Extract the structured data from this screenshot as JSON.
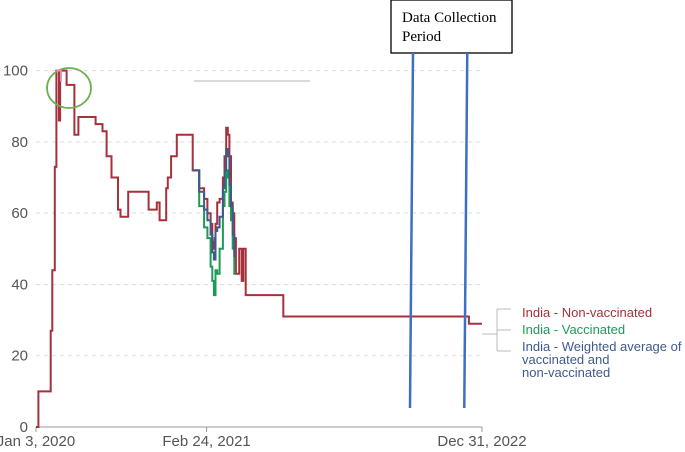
{
  "chart_data": {
    "type": "line",
    "title": "",
    "xlabel": "",
    "ylabel": "",
    "ylim": [
      0,
      110
    ],
    "xlim": [
      "2020-01-03",
      "2022-12-31"
    ],
    "yticks": [
      "0",
      "20",
      "40",
      "60",
      "80",
      "100"
    ],
    "xticks": [
      {
        "date": "2020-01-03",
        "label": "Jan 3, 2020"
      },
      {
        "date": "2021-02-24",
        "label": "Feb 24, 2021"
      },
      {
        "date": "2022-12-31",
        "label": "Dec 31, 2022"
      }
    ],
    "grid": true,
    "colors": {
      "non_vaccinated": "#a7303d",
      "vaccinated": "#1f9a55",
      "weighted": "#3e5a8a",
      "annotation_lines": "#3d6fc4",
      "highlight_circle": "#6ab04c",
      "highlight_mark": "#e58ab0"
    },
    "series": [
      {
        "name": "India - Non-vaccinated",
        "key": "non_vaccinated",
        "points": [
          [
            "2020-01-03",
            0
          ],
          [
            "2020-01-09",
            0
          ],
          [
            "2020-01-09",
            10
          ],
          [
            "2020-02-08",
            10
          ],
          [
            "2020-02-08",
            27
          ],
          [
            "2020-02-12",
            27
          ],
          [
            "2020-02-12",
            44
          ],
          [
            "2020-02-18",
            44
          ],
          [
            "2020-02-18",
            73
          ],
          [
            "2020-02-22",
            73
          ],
          [
            "2020-02-22",
            100
          ],
          [
            "2020-02-28",
            100
          ],
          [
            "2020-02-28",
            86
          ],
          [
            "2020-03-02",
            86
          ],
          [
            "2020-03-02",
            100
          ],
          [
            "2020-03-18",
            100
          ],
          [
            "2020-03-18",
            96
          ],
          [
            "2020-04-06",
            96
          ],
          [
            "2020-04-06",
            82
          ],
          [
            "2020-04-16",
            82
          ],
          [
            "2020-04-16",
            87
          ],
          [
            "2020-05-28",
            87
          ],
          [
            "2020-05-28",
            85
          ],
          [
            "2020-06-14",
            85
          ],
          [
            "2020-06-14",
            83
          ],
          [
            "2020-06-24",
            83
          ],
          [
            "2020-06-24",
            76
          ],
          [
            "2020-07-06",
            76
          ],
          [
            "2020-07-06",
            70
          ],
          [
            "2020-07-22",
            70
          ],
          [
            "2020-07-22",
            61
          ],
          [
            "2020-07-28",
            61
          ],
          [
            "2020-07-28",
            59
          ],
          [
            "2020-08-16",
            59
          ],
          [
            "2020-08-16",
            66
          ],
          [
            "2020-10-05",
            66
          ],
          [
            "2020-10-05",
            61
          ],
          [
            "2020-10-25",
            61
          ],
          [
            "2020-10-25",
            63
          ],
          [
            "2020-11-01",
            63
          ],
          [
            "2020-11-01",
            58
          ],
          [
            "2020-11-17",
            58
          ],
          [
            "2020-11-17",
            67
          ],
          [
            "2020-11-21",
            67
          ],
          [
            "2020-11-21",
            70
          ],
          [
            "2020-11-29",
            70
          ],
          [
            "2020-11-29",
            76
          ],
          [
            "2020-12-13",
            76
          ],
          [
            "2020-12-13",
            82
          ],
          [
            "2021-01-21",
            82
          ],
          [
            "2021-01-21",
            72
          ],
          [
            "2021-02-06",
            72
          ],
          [
            "2021-02-06",
            67
          ],
          [
            "2021-02-18",
            67
          ],
          [
            "2021-02-18",
            64
          ],
          [
            "2021-02-26",
            64
          ],
          [
            "2021-02-26",
            60
          ],
          [
            "2021-03-06",
            60
          ],
          [
            "2021-03-06",
            57
          ],
          [
            "2021-03-10",
            57
          ],
          [
            "2021-03-10",
            52
          ],
          [
            "2021-03-14",
            52
          ],
          [
            "2021-03-14",
            50
          ],
          [
            "2021-03-16",
            50
          ],
          [
            "2021-03-16",
            53
          ],
          [
            "2021-03-18",
            53
          ],
          [
            "2021-03-18",
            57
          ],
          [
            "2021-03-22",
            57
          ],
          [
            "2021-03-22",
            63
          ],
          [
            "2021-03-28",
            63
          ],
          [
            "2021-03-28",
            64
          ],
          [
            "2021-04-05",
            64
          ],
          [
            "2021-04-05",
            70
          ],
          [
            "2021-04-09",
            70
          ],
          [
            "2021-04-09",
            76
          ],
          [
            "2021-04-13",
            76
          ],
          [
            "2021-04-13",
            84
          ],
          [
            "2021-04-17",
            84
          ],
          [
            "2021-04-17",
            82
          ],
          [
            "2021-04-21",
            82
          ],
          [
            "2021-04-21",
            76
          ],
          [
            "2021-04-25",
            76
          ],
          [
            "2021-04-25",
            63
          ],
          [
            "2021-04-29",
            63
          ],
          [
            "2021-04-29",
            60
          ],
          [
            "2021-05-03",
            60
          ],
          [
            "2021-05-03",
            53
          ],
          [
            "2021-05-07",
            53
          ],
          [
            "2021-05-07",
            43
          ],
          [
            "2021-05-15",
            43
          ],
          [
            "2021-05-15",
            50
          ],
          [
            "2021-05-21",
            50
          ],
          [
            "2021-05-21",
            41
          ],
          [
            "2021-05-25",
            41
          ],
          [
            "2021-05-25",
            50
          ],
          [
            "2021-05-31",
            50
          ],
          [
            "2021-05-31",
            37
          ],
          [
            "2021-08-31",
            37
          ],
          [
            "2021-08-31",
            31
          ],
          [
            "2022-11-29",
            31
          ],
          [
            "2022-11-29",
            29
          ],
          [
            "2022-12-31",
            29
          ]
        ]
      },
      {
        "name": "India - Vaccinated",
        "key": "vaccinated",
        "points": [
          [
            "2021-01-21",
            72
          ],
          [
            "2021-02-06",
            72
          ],
          [
            "2021-02-06",
            62
          ],
          [
            "2021-02-18",
            62
          ],
          [
            "2021-02-18",
            56
          ],
          [
            "2021-02-26",
            56
          ],
          [
            "2021-02-26",
            53
          ],
          [
            "2021-03-06",
            53
          ],
          [
            "2021-03-06",
            45
          ],
          [
            "2021-03-10",
            45
          ],
          [
            "2021-03-10",
            41
          ],
          [
            "2021-03-14",
            41
          ],
          [
            "2021-03-14",
            37
          ],
          [
            "2021-03-18",
            37
          ],
          [
            "2021-03-18",
            44
          ],
          [
            "2021-03-22",
            44
          ],
          [
            "2021-03-22",
            43
          ],
          [
            "2021-03-28",
            43
          ],
          [
            "2021-03-28",
            50
          ],
          [
            "2021-04-05",
            50
          ],
          [
            "2021-04-05",
            62
          ],
          [
            "2021-04-09",
            62
          ],
          [
            "2021-04-09",
            66
          ],
          [
            "2021-04-13",
            66
          ],
          [
            "2021-04-13",
            72
          ],
          [
            "2021-04-17",
            72
          ],
          [
            "2021-04-17",
            70
          ],
          [
            "2021-04-21",
            70
          ],
          [
            "2021-04-21",
            62
          ],
          [
            "2021-04-25",
            62
          ],
          [
            "2021-04-25",
            58
          ],
          [
            "2021-04-29",
            58
          ],
          [
            "2021-04-29",
            50
          ],
          [
            "2021-05-03",
            50
          ],
          [
            "2021-05-03",
            43
          ],
          [
            "2021-05-07",
            43
          ]
        ]
      },
      {
        "name": "India - Weighted average of vaccinated and non-vaccinated",
        "key": "weighted",
        "points": [
          [
            "2021-01-21",
            72
          ],
          [
            "2021-02-06",
            72
          ],
          [
            "2021-02-06",
            66
          ],
          [
            "2021-02-18",
            66
          ],
          [
            "2021-02-18",
            61
          ],
          [
            "2021-02-26",
            61
          ],
          [
            "2021-02-26",
            58
          ],
          [
            "2021-03-06",
            58
          ],
          [
            "2021-03-06",
            54
          ],
          [
            "2021-03-10",
            54
          ],
          [
            "2021-03-10",
            49
          ],
          [
            "2021-03-14",
            49
          ],
          [
            "2021-03-14",
            47
          ],
          [
            "2021-03-18",
            47
          ],
          [
            "2021-03-18",
            55
          ],
          [
            "2021-03-22",
            55
          ],
          [
            "2021-03-22",
            56
          ],
          [
            "2021-03-28",
            56
          ],
          [
            "2021-03-28",
            59
          ],
          [
            "2021-04-05",
            59
          ],
          [
            "2021-04-05",
            67
          ],
          [
            "2021-04-09",
            67
          ],
          [
            "2021-04-09",
            72
          ],
          [
            "2021-04-13",
            72
          ],
          [
            "2021-04-13",
            78
          ],
          [
            "2021-04-17",
            78
          ],
          [
            "2021-04-17",
            76
          ],
          [
            "2021-04-21",
            76
          ],
          [
            "2021-04-21",
            68
          ],
          [
            "2021-04-25",
            68
          ],
          [
            "2021-04-25",
            62
          ],
          [
            "2021-04-29",
            62
          ],
          [
            "2021-04-29",
            54
          ],
          [
            "2021-05-03",
            54
          ],
          [
            "2021-05-03",
            48
          ],
          [
            "2021-05-07",
            48
          ]
        ]
      }
    ],
    "annotation": {
      "label_line1": "Data Collection",
      "label_line2": "Period",
      "period_lines": [
        "2022-07-10",
        "2022-11-20"
      ]
    }
  }
}
